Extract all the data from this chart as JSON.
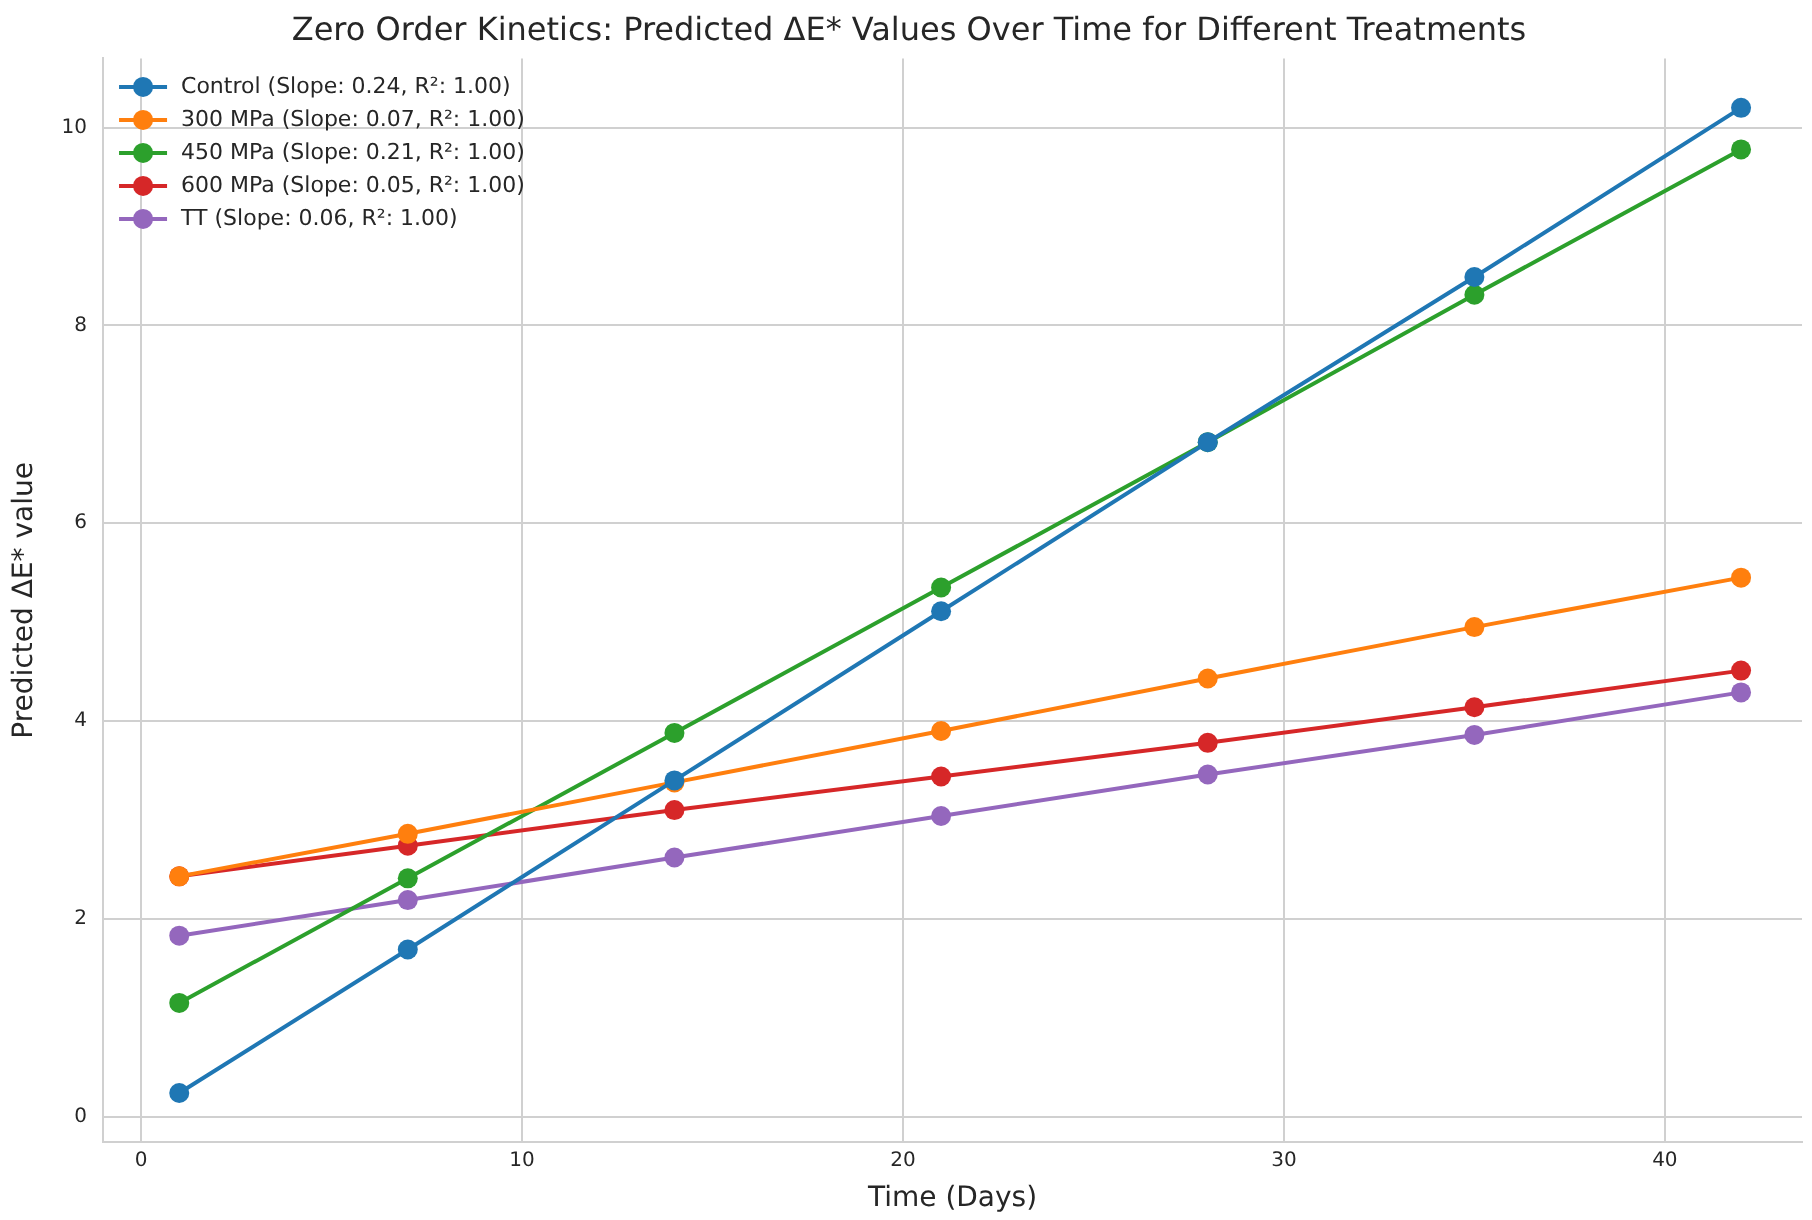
{
  "chart_data": {
    "type": "line",
    "title": "Zero Order Kinetics: Predicted ΔE* Values Over Time for Different Treatments",
    "xlabel": "Time (Days)",
    "ylabel": "Predicted ΔE* value",
    "x": [
      1,
      7,
      14,
      21,
      28,
      35,
      42
    ],
    "series": [
      {
        "name": "Control (Slope: 0.24, R²: 1.00)",
        "color": "#1f77b4",
        "values": [
          0.24,
          1.69,
          3.4,
          5.11,
          6.82,
          8.49,
          10.2
        ]
      },
      {
        "name": "300 MPa (Slope: 0.07, R²: 1.00)",
        "color": "#ff7f0e",
        "values": [
          2.43,
          2.86,
          3.38,
          3.9,
          4.43,
          4.95,
          5.45
        ]
      },
      {
        "name": "450 MPa (Slope: 0.21, R²: 1.00)",
        "color": "#2ca02c",
        "values": [
          1.15,
          2.41,
          3.88,
          5.35,
          6.82,
          8.31,
          9.78
        ]
      },
      {
        "name": "600 MPa (Slope: 0.05, R²: 1.00)",
        "color": "#d62728",
        "values": [
          2.43,
          2.74,
          3.1,
          3.44,
          3.78,
          4.14,
          4.51
        ]
      },
      {
        "name": "TT (Slope: 0.06, R²: 1.00)",
        "color": "#9467bd",
        "values": [
          1.83,
          2.19,
          2.62,
          3.04,
          3.46,
          3.86,
          4.29
        ]
      }
    ],
    "xlim": [
      -1,
      43.6
    ],
    "xticks": [
      0,
      10,
      20,
      30,
      40
    ],
    "ylim": [
      -0.26,
      10.7
    ],
    "yticks": [
      0,
      2,
      4,
      6,
      8,
      10
    ],
    "grid": true,
    "legend": "top left",
    "marker": "circle",
    "line_style": "solid"
  }
}
